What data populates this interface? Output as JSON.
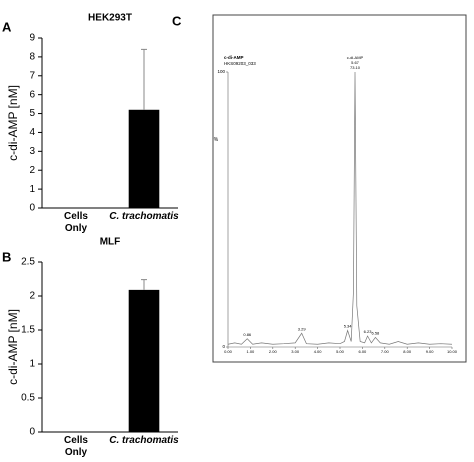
{
  "chart_data": [
    {
      "type": "bar",
      "panel": "A",
      "title": "HEK293T",
      "ylabel": "c-di-AMP [nM]",
      "categories": [
        "Cells Only",
        "C. trachomatis"
      ],
      "series": [
        {
          "color": "#000000",
          "values": [
            0,
            5.2
          ],
          "errors": [
            null,
            3.2
          ]
        }
      ],
      "ylim": [
        0,
        9
      ],
      "yticks": [
        0,
        1,
        2,
        3,
        4,
        5,
        6,
        7,
        8,
        9
      ]
    },
    {
      "type": "bar",
      "panel": "B",
      "title": "MLF",
      "ylabel": "c-di-AMP [nM]",
      "categories": [
        "Cells Only",
        "C. trachomatis"
      ],
      "series": [
        {
          "color": "#000000",
          "values": [
            0,
            2.09
          ],
          "errors": [
            null,
            0.15
          ]
        }
      ],
      "ylim": [
        0,
        2.5
      ],
      "yticks": [
        0,
        0.5,
        1,
        1.5,
        2,
        2.5
      ]
    },
    {
      "type": "line",
      "panel": "C",
      "header": [
        "c-di-AMP",
        "HKS09203_033"
      ],
      "ylabel": "%",
      "x": [
        0,
        0.3,
        0.6,
        0.86,
        1.1,
        1.5,
        2,
        2.5,
        3,
        3.29,
        3.5,
        4,
        4.5,
        5,
        5.2,
        5.34,
        5.5,
        5.6,
        5.67,
        5.75,
        5.9,
        6.1,
        6.23,
        6.4,
        6.58,
        6.8,
        7.2,
        7.6,
        8,
        8.5,
        9,
        9.5,
        10
      ],
      "series": [
        {
          "color": "#777777",
          "values": [
            1,
            1.5,
            1,
            3,
            1,
            1.5,
            1,
            1.2,
            1.5,
            5,
            1.2,
            1,
            1.5,
            1.2,
            2,
            6,
            2,
            20,
            100,
            15,
            2,
            1.5,
            4,
            1.5,
            3.5,
            1.5,
            1,
            2,
            1,
            1.5,
            1,
            1.2,
            1
          ]
        }
      ],
      "peaks": [
        {
          "x": 0.86
        },
        {
          "x": 3.29
        },
        {
          "x": 5.34
        },
        {
          "name": "c-di-AMP",
          "x": 5.67,
          "area": {
            "value": 73.1,
            "label": "73.10"
          }
        },
        {
          "x": 6.23
        },
        {
          "x": 6.58
        }
      ],
      "xlim": [
        0,
        10
      ],
      "xticks": [
        {
          "value": 0,
          "label": "0.00"
        },
        {
          "value": 1,
          "label": "1.00"
        },
        {
          "value": 2,
          "label": "2.00"
        },
        {
          "value": 3,
          "label": "3.00"
        },
        {
          "value": 4,
          "label": "4.00"
        },
        {
          "value": 5,
          "label": "5.00"
        },
        {
          "value": 6,
          "label": "6.00"
        },
        {
          "value": 7,
          "label": "7.00"
        },
        {
          "value": 8,
          "label": "8.00"
        },
        {
          "value": 9,
          "label": "9.00"
        },
        {
          "value": 10,
          "label": "10.00"
        }
      ],
      "ylim": [
        0,
        100
      ],
      "yticks": [
        0,
        100
      ]
    }
  ]
}
